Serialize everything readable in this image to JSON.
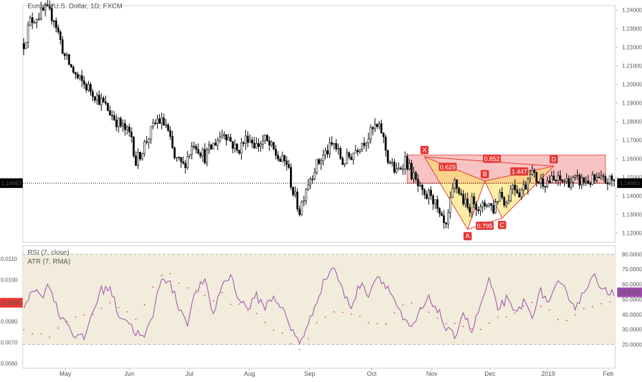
{
  "chart_data": [
    {
      "type": "candlestick",
      "title": "Euro Fx/U.S. Dollar, 1D, FXCM",
      "ylim": [
        1.115,
        1.2425
      ],
      "y_ticks": [
        "1.24000",
        "1.23000",
        "1.22000",
        "1.21000",
        "1.20000",
        "1.19000",
        "1.18000",
        "1.17000",
        "1.16000",
        "1.15000",
        "1.14000",
        "1.13000",
        "1.12000"
      ],
      "last_price": "1.14683",
      "last_value": 1.14683,
      "x_months": [
        "May",
        "Jun",
        "Jul",
        "Aug",
        "Sep",
        "Oct",
        "Nov",
        "Dec",
        "2019",
        "Feb"
      ],
      "up_color": "#ffffff",
      "down_color": "#000000",
      "anchors": [
        [
          0,
          1.222
        ],
        [
          3,
          1.234
        ],
        [
          10,
          1.24
        ],
        [
          14,
          1.236
        ],
        [
          19,
          1.215
        ],
        [
          25,
          1.203
        ],
        [
          32,
          1.196
        ],
        [
          38,
          1.188
        ],
        [
          44,
          1.179
        ],
        [
          50,
          1.172
        ],
        [
          52,
          1.158
        ],
        [
          57,
          1.17
        ],
        [
          62,
          1.181
        ],
        [
          66,
          1.178
        ],
        [
          70,
          1.16
        ],
        [
          74,
          1.156
        ],
        [
          79,
          1.169
        ],
        [
          84,
          1.161
        ],
        [
          89,
          1.169
        ],
        [
          93,
          1.175
        ],
        [
          99,
          1.164
        ],
        [
          104,
          1.172
        ],
        [
          108,
          1.167
        ],
        [
          112,
          1.17
        ],
        [
          116,
          1.164
        ],
        [
          119,
          1.159
        ],
        [
          122,
          1.158
        ],
        [
          125,
          1.142
        ],
        [
          128,
          1.132
        ],
        [
          131,
          1.145
        ],
        [
          135,
          1.155
        ],
        [
          140,
          1.163
        ],
        [
          144,
          1.168
        ],
        [
          148,
          1.158
        ],
        [
          152,
          1.162
        ],
        [
          156,
          1.168
        ],
        [
          160,
          1.172
        ],
        [
          163,
          1.177
        ],
        [
          166,
          1.175
        ],
        [
          169,
          1.16
        ],
        [
          173,
          1.152
        ],
        [
          177,
          1.16
        ],
        [
          180,
          1.152
        ],
        [
          183,
          1.145
        ],
        [
          186,
          1.138
        ],
        [
          189,
          1.142
        ],
        [
          193,
          1.128
        ],
        [
          196,
          1.122
        ],
        [
          198,
          1.136
        ],
        [
          200,
          1.147
        ],
        [
          203,
          1.14
        ],
        [
          206,
          1.133
        ],
        [
          209,
          1.138
        ],
        [
          212,
          1.132
        ],
        [
          215,
          1.137
        ],
        [
          218,
          1.133
        ],
        [
          221,
          1.142
        ],
        [
          224,
          1.136
        ],
        [
          227,
          1.147
        ],
        [
          230,
          1.142
        ],
        [
          233,
          1.146
        ],
        [
          235,
          1.155
        ],
        [
          237,
          1.15
        ],
        [
          239,
          1.148
        ]
      ],
      "harmonic_pattern": {
        "points": [
          {
            "label": "X",
            "i": 186,
            "value": 1.161
          },
          {
            "label": "A",
            "i": 206,
            "value": 1.122
          },
          {
            "label": "B",
            "i": 214,
            "value": 1.148
          },
          {
            "label": "C",
            "i": 222,
            "value": 1.128
          },
          {
            "label": "D",
            "i": 246,
            "value": 1.156
          }
        ],
        "ratios": [
          "0.629",
          "0.852",
          "1.447",
          "0.795"
        ],
        "zone": {
          "y_high": 1.162,
          "y_low": 1.1468,
          "i_start": 178,
          "i_end": 270
        }
      }
    },
    {
      "type": "line",
      "title": "RSI (7, close)",
      "ylim": [
        17,
        82
      ],
      "y_ticks": [
        "80.0000",
        "70.0000",
        "60.0000",
        "50.0000",
        "40.0000",
        "30.0000",
        "20.0000"
      ],
      "bands": [
        80,
        20
      ],
      "last_value_label": "54.6799",
      "color": "#9c4aa8",
      "anchors": [
        [
          0,
          45
        ],
        [
          4,
          58
        ],
        [
          8,
          52
        ],
        [
          12,
          60
        ],
        [
          16,
          41
        ],
        [
          20,
          35
        ],
        [
          24,
          25
        ],
        [
          28,
          24
        ],
        [
          32,
          42
        ],
        [
          36,
          56
        ],
        [
          40,
          58
        ],
        [
          44,
          40
        ],
        [
          48,
          36
        ],
        [
          52,
          28
        ],
        [
          56,
          24
        ],
        [
          60,
          40
        ],
        [
          64,
          66
        ],
        [
          68,
          60
        ],
        [
          72,
          45
        ],
        [
          76,
          35
        ],
        [
          80,
          56
        ],
        [
          84,
          62
        ],
        [
          88,
          40
        ],
        [
          92,
          60
        ],
        [
          96,
          66
        ],
        [
          100,
          50
        ],
        [
          104,
          44
        ],
        [
          108,
          52
        ],
        [
          112,
          45
        ],
        [
          116,
          52
        ],
        [
          120,
          44
        ],
        [
          124,
          30
        ],
        [
          128,
          22
        ],
        [
          132,
          32
        ],
        [
          136,
          50
        ],
        [
          140,
          64
        ],
        [
          144,
          72
        ],
        [
          148,
          55
        ],
        [
          152,
          45
        ],
        [
          156,
          60
        ],
        [
          160,
          54
        ],
        [
          164,
          66
        ],
        [
          168,
          60
        ],
        [
          172,
          50
        ],
        [
          176,
          36
        ],
        [
          180,
          30
        ],
        [
          184,
          42
        ],
        [
          188,
          50
        ],
        [
          192,
          44
        ],
        [
          196,
          30
        ],
        [
          200,
          25
        ],
        [
          204,
          42
        ],
        [
          208,
          28
        ],
        [
          212,
          46
        ],
        [
          216,
          62
        ],
        [
          220,
          44
        ],
        [
          224,
          50
        ],
        [
          228,
          40
        ],
        [
          232,
          48
        ],
        [
          236,
          40
        ],
        [
          240,
          55
        ],
        [
          244,
          48
        ],
        [
          248,
          60
        ],
        [
          252,
          55
        ],
        [
          256,
          45
        ],
        [
          260,
          54
        ],
        [
          264,
          68
        ],
        [
          268,
          55
        ]
      ]
    },
    {
      "type": "line",
      "title": "ATR (7, RMA)",
      "ylim": [
        0.0059,
        0.0112
      ],
      "y_ticks": [
        "0.0110",
        "0.0100",
        "0.0090",
        "0.0080",
        "0.0070",
        "0.0060"
      ],
      "last_value_label": "0.0089",
      "color": "#e53935",
      "style": "dots",
      "anchors": [
        [
          0,
          0.0077
        ],
        [
          6,
          0.0075
        ],
        [
          10,
          0.0072
        ],
        [
          14,
          0.0076
        ],
        [
          20,
          0.0081
        ],
        [
          26,
          0.0083
        ],
        [
          34,
          0.0084
        ],
        [
          40,
          0.0088
        ],
        [
          46,
          0.0084
        ],
        [
          52,
          0.0082
        ],
        [
          58,
          0.0091
        ],
        [
          62,
          0.01
        ],
        [
          66,
          0.0105
        ],
        [
          70,
          0.0101
        ],
        [
          74,
          0.0098
        ],
        [
          80,
          0.0094
        ],
        [
          86,
          0.009
        ],
        [
          92,
          0.0093
        ],
        [
          98,
          0.0088
        ],
        [
          104,
          0.0086
        ],
        [
          110,
          0.0082
        ],
        [
          116,
          0.0076
        ],
        [
          122,
          0.0072
        ],
        [
          126,
          0.0064
        ],
        [
          130,
          0.007
        ],
        [
          136,
          0.0079
        ],
        [
          142,
          0.0083
        ],
        [
          148,
          0.0085
        ],
        [
          154,
          0.0082
        ],
        [
          160,
          0.008
        ],
        [
          166,
          0.0079
        ],
        [
          172,
          0.0083
        ],
        [
          178,
          0.0089
        ],
        [
          184,
          0.0086
        ],
        [
          190,
          0.0082
        ],
        [
          196,
          0.008
        ],
        [
          202,
          0.0078
        ],
        [
          208,
          0.0077
        ],
        [
          214,
          0.0078
        ],
        [
          220,
          0.0081
        ],
        [
          226,
          0.0084
        ],
        [
          232,
          0.0087
        ],
        [
          238,
          0.0088
        ],
        [
          244,
          0.0085
        ],
        [
          250,
          0.0078
        ],
        [
          256,
          0.0083
        ],
        [
          262,
          0.0087
        ],
        [
          268,
          0.0089
        ]
      ]
    }
  ]
}
